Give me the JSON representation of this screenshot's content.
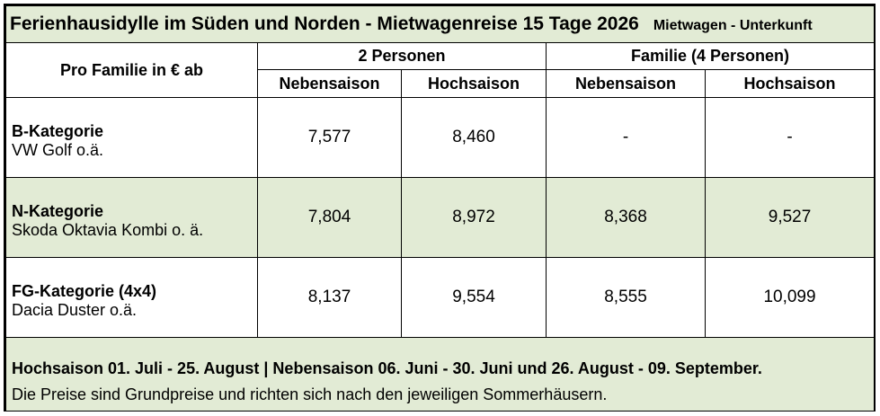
{
  "title": {
    "main": "Ferienhausidylle im Süden und Norden - Mietwagenreise 15 Tage 2026",
    "sub": "Mietwagen - Unterkunft"
  },
  "header": {
    "corner": "Pro Familie in € ab",
    "groups": [
      "2 Personen",
      "Familie (4 Personen)"
    ],
    "columns": [
      "Nebensaison",
      "Hochsaison",
      "Nebensaison",
      "Hochsaison"
    ]
  },
  "rows": [
    {
      "category": "B-Kategorie",
      "car": "VW Golf o.ä.",
      "values": [
        "7,577",
        "8,460",
        "-",
        "-"
      ]
    },
    {
      "category": "N-Kategorie",
      "car": "Skoda Oktavia Kombi o. ä.",
      "values": [
        "7,804",
        "8,972",
        "8,368",
        "9,527"
      ]
    },
    {
      "category": "FG-Kategorie (4x4)",
      "car": "Dacia Duster o.ä.",
      "values": [
        "8,137",
        "9,554",
        "8,555",
        "10,099"
      ]
    }
  ],
  "footer": {
    "seasons": "Hochsaison 01. Juli - 25. August | Nebensaison 06. Juni - 30. Juni und 26. August - 09. September.",
    "note": "Die Preise sind Grundpreise und richten sich nach den jeweiligen Sommerhäusern."
  },
  "colors": {
    "shade": "#e2ebd5",
    "border": "#000000"
  }
}
